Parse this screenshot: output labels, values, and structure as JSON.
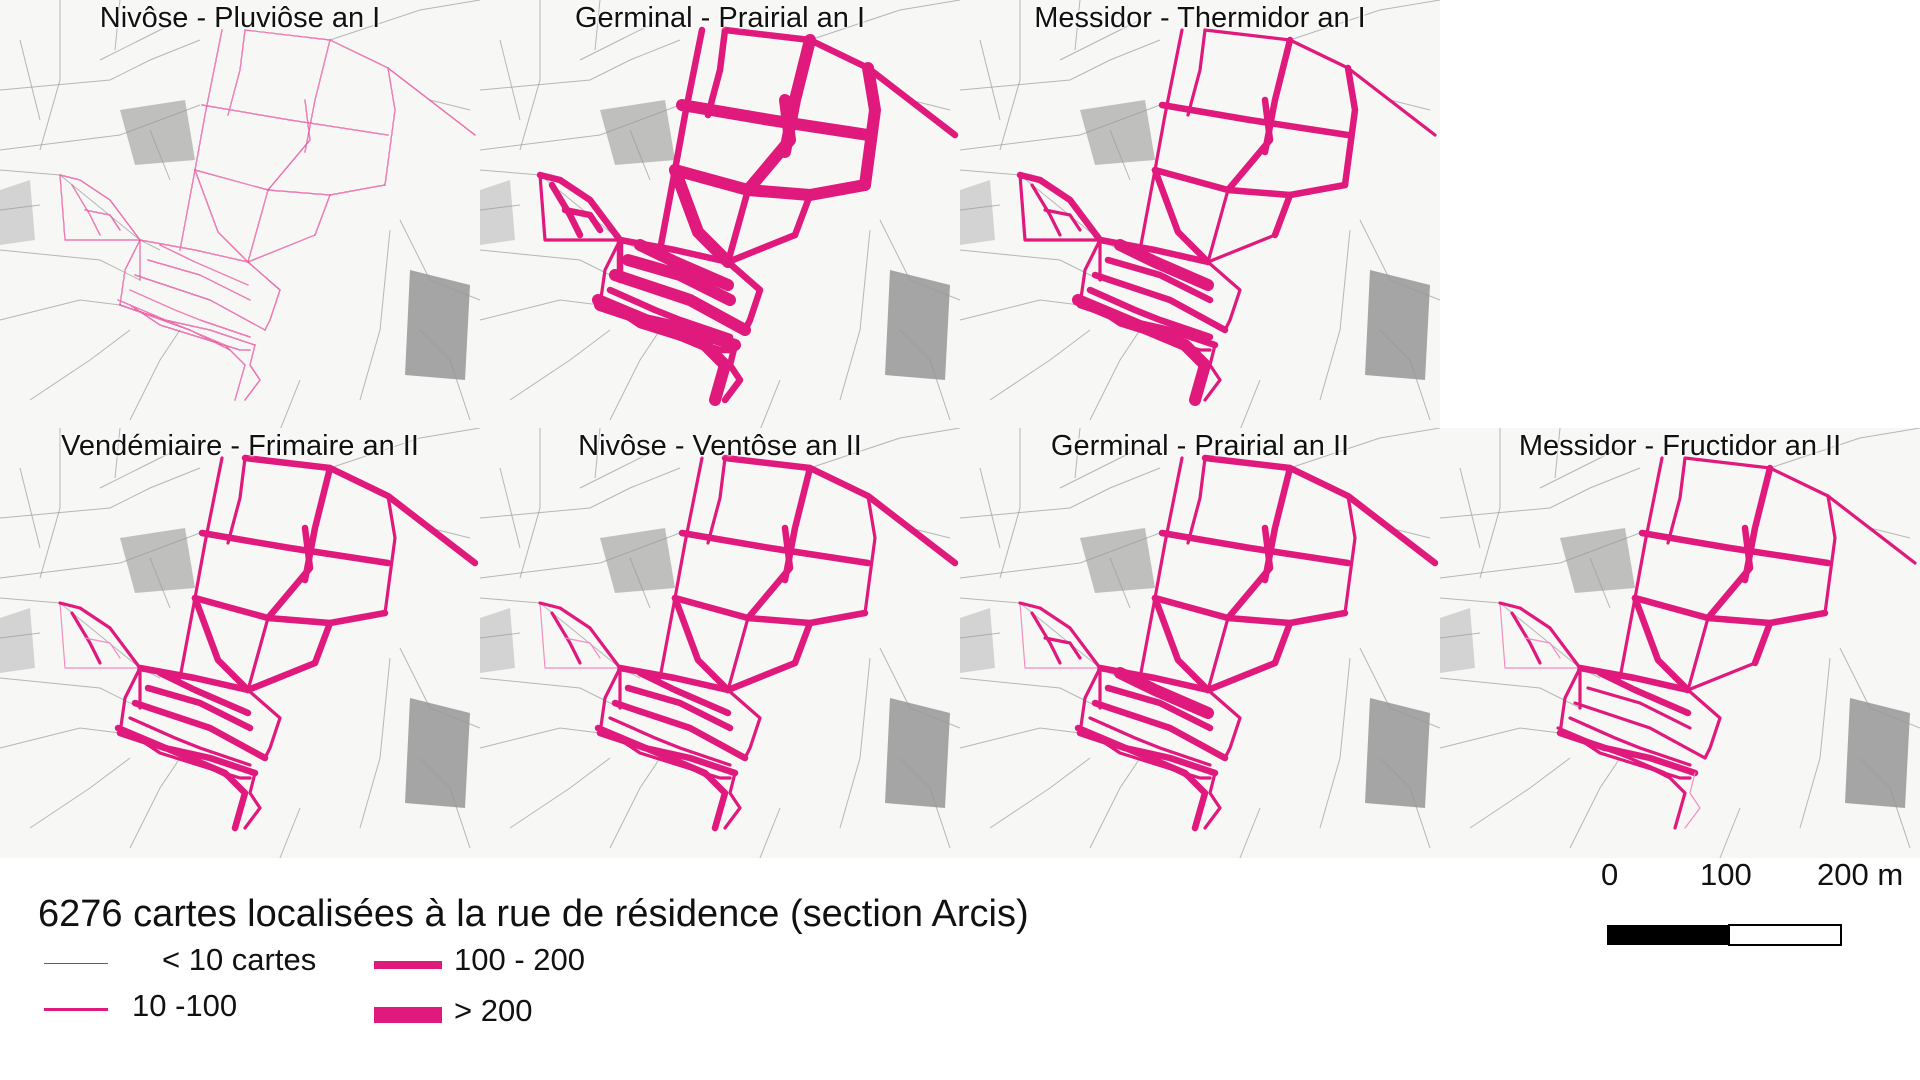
{
  "colors": {
    "street": "#e0197d",
    "street_faint": "#f48cc0",
    "map_background": "#f7f7f6",
    "map_lines": "#9a9a9a"
  },
  "panels": [
    {
      "title": "Nivôse - Pluviôse  an I",
      "weights": [
        1,
        1,
        1,
        1,
        1,
        1,
        1,
        1,
        1,
        1,
        1,
        1,
        1,
        1,
        1,
        1,
        1,
        1,
        1,
        1,
        1,
        1,
        1,
        1,
        1,
        1,
        1,
        1,
        1,
        1
      ]
    },
    {
      "title": "Germinal - Prairial  an I",
      "weights": [
        3,
        3,
        4,
        4,
        3,
        4,
        4,
        4,
        4,
        4,
        3,
        3,
        3,
        3,
        2,
        4,
        4,
        3,
        3,
        4,
        3,
        3,
        3,
        4,
        3,
        2,
        3,
        3,
        3,
        4
      ]
    },
    {
      "title": "Messidor - Thermidor  an I",
      "weights": [
        2,
        2,
        3,
        3,
        2,
        3,
        3,
        3,
        3,
        3,
        2,
        2,
        2,
        3,
        2,
        3,
        3,
        3,
        2,
        4,
        3,
        2,
        2,
        3,
        2,
        2,
        3,
        2,
        2,
        4
      ]
    },
    {
      "title": "Vendémiaire - Frimaire  an II",
      "weights": [
        3,
        2,
        3,
        3,
        2,
        3,
        3,
        3,
        2,
        3,
        3,
        2,
        2,
        3,
        2,
        3,
        3,
        2,
        2,
        3,
        3,
        2,
        2,
        3,
        2,
        1,
        2,
        2,
        1,
        3
      ]
    },
    {
      "title": "Nivôse - Ventôse  an II",
      "weights": [
        3,
        2,
        3,
        3,
        2,
        3,
        3,
        3,
        2,
        3,
        3,
        2,
        2,
        3,
        2,
        3,
        3,
        2,
        2,
        3,
        3,
        2,
        2,
        3,
        2,
        1,
        2,
        2,
        1,
        3
      ]
    },
    {
      "title": "Germinal - Prairial  an II",
      "weights": [
        3,
        2,
        3,
        3,
        2,
        3,
        3,
        3,
        2,
        3,
        3,
        2,
        2,
        3,
        2,
        3,
        3,
        2,
        2,
        4,
        3,
        2,
        2,
        3,
        2,
        1,
        2,
        2,
        2,
        3
      ]
    },
    {
      "title": "Messidor - Fructidor  an II",
      "weights": [
        2,
        2,
        3,
        3,
        2,
        3,
        3,
        3,
        2,
        3,
        2,
        2,
        2,
        3,
        2,
        2,
        3,
        2,
        2,
        3,
        3,
        1,
        2,
        2,
        2,
        1,
        2,
        2,
        1,
        2
      ]
    }
  ],
  "legend": {
    "title": "6276 cartes localisées à la rue de résidence (section Arcis)",
    "classes": [
      {
        "label": "< 10 cartes",
        "weight": 1
      },
      {
        "label": "10 -100",
        "weight": 2
      },
      {
        "label": "100 - 200",
        "weight": 3
      },
      {
        "label": "> 200",
        "weight": 4
      }
    ]
  },
  "scale_bar": {
    "labels": [
      "0",
      "100",
      "200 m"
    ]
  }
}
